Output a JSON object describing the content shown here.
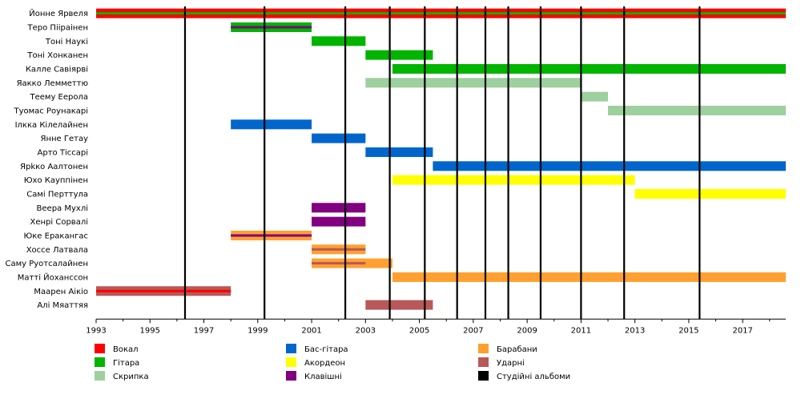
{
  "chart_data": {
    "type": "timeline",
    "x_range": [
      1993,
      2018.6
    ],
    "x_ticks": [
      "1993",
      "1995",
      "1997",
      "1999",
      "2001",
      "2003",
      "2005",
      "2007",
      "2009",
      "2011",
      "2013",
      "2015",
      "2017"
    ],
    "roles": {
      "vocal": {
        "label": "Вокал",
        "color": "#ff0000"
      },
      "guitar": {
        "label": "Гітара",
        "color": "#00b400"
      },
      "violin": {
        "label": "Скрипка",
        "color": "#9ecf9e"
      },
      "bass": {
        "label": "Бас-гітара",
        "color": "#0066cc"
      },
      "accordion": {
        "label": "Акордеон",
        "color": "#ffff00"
      },
      "keys": {
        "label": "Клавішні",
        "color": "#800080"
      },
      "drums": {
        "label": "Барабани",
        "color": "#ffa030"
      },
      "perc": {
        "label": "Ударні",
        "color": "#b85858"
      },
      "albums": {
        "label": "Студійні альбоми",
        "color": "#000000"
      }
    },
    "legend_order": [
      [
        "vocal",
        "guitar",
        "violin"
      ],
      [
        "bass",
        "accordion",
        "keys"
      ],
      [
        "drums",
        "perc",
        "albums"
      ]
    ],
    "albums": [
      1996.3,
      1999.25,
      2002.25,
      2003.9,
      2005.2,
      2006.4,
      2007.45,
      2008.3,
      2009.5,
      2011.0,
      2012.6,
      2015.4
    ],
    "members": [
      {
        "name": "Йонне Ярвеля",
        "bars": [
          {
            "role": "vocal",
            "from": 1993,
            "to": 2018.6,
            "sub": "guitar"
          }
        ]
      },
      {
        "name": "Теро Пііраінен",
        "bars": [
          {
            "role": "guitar",
            "from": 1998,
            "to": 2001,
            "sub": "keys"
          }
        ]
      },
      {
        "name": "Тоні Наукі",
        "bars": [
          {
            "role": "guitar",
            "from": 2001,
            "to": 2003
          }
        ]
      },
      {
        "name": "Тоні Хонканен",
        "bars": [
          {
            "role": "guitar",
            "from": 2003,
            "to": 2005.5
          }
        ]
      },
      {
        "name": "Калле Савіярві",
        "bars": [
          {
            "role": "guitar",
            "from": 2004,
            "to": 2018.6
          }
        ]
      },
      {
        "name": "Яакко Лемметтю",
        "bars": [
          {
            "role": "violin",
            "from": 2003,
            "to": 2011
          }
        ]
      },
      {
        "name": "Теему Еерола",
        "bars": [
          {
            "role": "violin",
            "from": 2011,
            "to": 2012
          }
        ]
      },
      {
        "name": "Туомас Роунакарі",
        "bars": [
          {
            "role": "violin",
            "from": 2012,
            "to": 2018.6
          }
        ]
      },
      {
        "name": "Ілкка Кілелайнен",
        "bars": [
          {
            "role": "bass",
            "from": 1998,
            "to": 2001
          }
        ]
      },
      {
        "name": "Янне Гетау",
        "bars": [
          {
            "role": "bass",
            "from": 2001,
            "to": 2003
          }
        ]
      },
      {
        "name": "Арто Тіссарі",
        "bars": [
          {
            "role": "bass",
            "from": 2003,
            "to": 2005.5
          }
        ]
      },
      {
        "name": "Ярkко Аалтонен",
        "bars": [
          {
            "role": "bass",
            "from": 2005.5,
            "to": 2018.6
          }
        ]
      },
      {
        "name": "Юхо Кауппінен",
        "bars": [
          {
            "role": "accordion",
            "from": 2004,
            "to": 2013
          }
        ]
      },
      {
        "name": "Самі Перттула",
        "bars": [
          {
            "role": "accordion",
            "from": 2013,
            "to": 2018.6
          }
        ]
      },
      {
        "name": "Веера Мухлі",
        "bars": [
          {
            "role": "keys",
            "from": 2001,
            "to": 2003
          }
        ]
      },
      {
        "name": "Хенрі Сорвалі",
        "bars": [
          {
            "role": "keys",
            "from": 2001,
            "to": 2003
          }
        ]
      },
      {
        "name": "Юке Еракангас",
        "bars": [
          {
            "role": "drums",
            "from": 1998,
            "to": 2001,
            "sub": "keys"
          }
        ]
      },
      {
        "name": "Хоссе Латвала",
        "bars": [
          {
            "role": "drums",
            "from": 2001,
            "to": 2003,
            "sub": "perc"
          }
        ]
      },
      {
        "name": "Саму Руотсалайнен",
        "bars": [
          {
            "role": "drums",
            "from": 2001,
            "to": 2004,
            "sub": "perc",
            "subto": 2003
          }
        ]
      },
      {
        "name": "Матті Йоханссон",
        "bars": [
          {
            "role": "drums",
            "from": 2004,
            "to": 2018.6
          }
        ]
      },
      {
        "name": "Маарен Аікіо",
        "bars": [
          {
            "role": "perc",
            "from": 1993,
            "to": 1998,
            "sub": "vocal"
          }
        ]
      },
      {
        "name": "Алі Мяаттяя",
        "bars": [
          {
            "role": "perc",
            "from": 2003,
            "to": 2005.5
          }
        ]
      }
    ]
  }
}
